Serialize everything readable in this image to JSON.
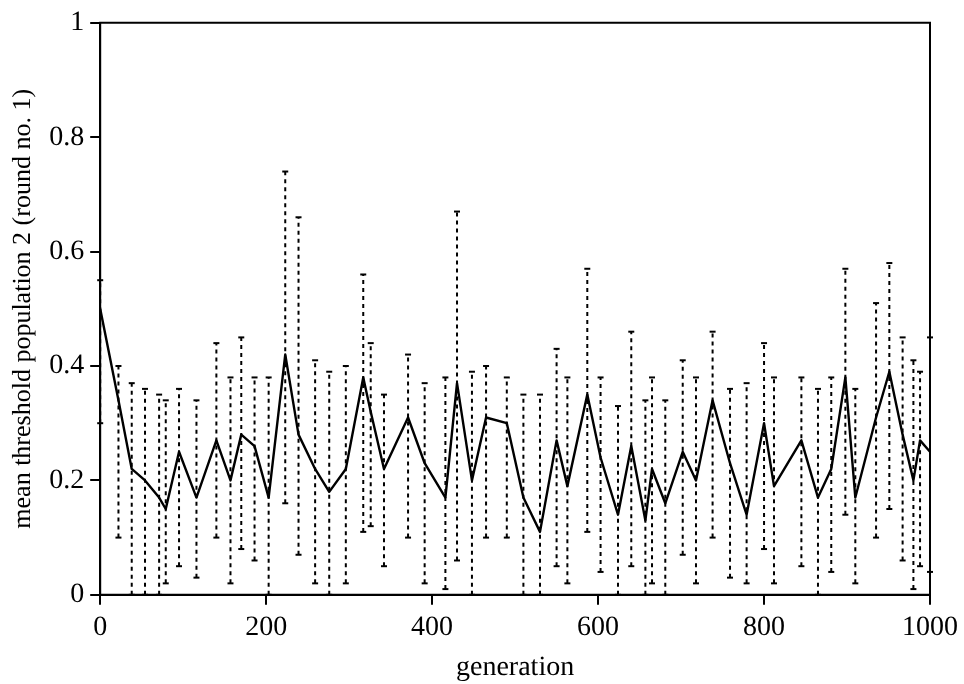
{
  "chart_data": {
    "type": "line",
    "xlabel": "generation",
    "ylabel": "mean threshold population 2 (round no. 1)",
    "xlim": [
      0,
      1000
    ],
    "xticks": [
      0,
      200,
      400,
      600,
      800,
      1000
    ],
    "ylim": [
      0,
      1
    ],
    "yticks": [
      0,
      0.2,
      0.4,
      0.6,
      0.8,
      1
    ],
    "grid": false,
    "legend": false,
    "marker": "none",
    "line_style": "solid",
    "series": [
      {
        "color": "#000000",
        "x": [
          0,
          22,
          38,
          54,
          71,
          79,
          95,
          116,
          140,
          157,
          170,
          186,
          203,
          223,
          239,
          259,
          276,
          296,
          317,
          326,
          342,
          371,
          391,
          416,
          430,
          448,
          465,
          490,
          510,
          530,
          550,
          563,
          587,
          603,
          624,
          640,
          657,
          665,
          681,
          702,
          718,
          738,
          759,
          779,
          800,
          812,
          845,
          865,
          881,
          898,
          910,
          935,
          951,
          967,
          980,
          988,
          1000
        ],
        "values": [
          0.5,
          0.34,
          0.22,
          0.2,
          0.17,
          0.15,
          0.25,
          0.17,
          0.27,
          0.2,
          0.28,
          0.26,
          0.17,
          0.42,
          0.28,
          0.22,
          0.18,
          0.22,
          0.38,
          0.32,
          0.22,
          0.31,
          0.23,
          0.17,
          0.37,
          0.2,
          0.31,
          0.3,
          0.17,
          0.11,
          0.27,
          0.19,
          0.35,
          0.24,
          0.14,
          0.26,
          0.13,
          0.22,
          0.16,
          0.25,
          0.2,
          0.34,
          0.23,
          0.14,
          0.3,
          0.19,
          0.27,
          0.17,
          0.22,
          0.38,
          0.17,
          0.31,
          0.39,
          0.28,
          0.2,
          0.27,
          0.25
        ],
        "errors": [
          [
            0.3,
            0.55
          ],
          [
            0.1,
            0.4
          ],
          [
            0.0,
            0.37
          ],
          [
            0.0,
            0.36
          ],
          [
            0.0,
            0.35
          ],
          [
            0.02,
            0.34
          ],
          [
            0.05,
            0.36
          ],
          [
            0.03,
            0.34
          ],
          [
            0.1,
            0.44
          ],
          [
            0.02,
            0.38
          ],
          [
            0.08,
            0.45
          ],
          [
            0.06,
            0.38
          ],
          [
            0.0,
            0.38
          ],
          [
            0.16,
            0.74
          ],
          [
            0.07,
            0.66
          ],
          [
            0.02,
            0.41
          ],
          [
            0.0,
            0.39
          ],
          [
            0.02,
            0.4
          ],
          [
            0.11,
            0.56
          ],
          [
            0.12,
            0.44
          ],
          [
            0.05,
            0.35
          ],
          [
            0.1,
            0.42
          ],
          [
            0.02,
            0.37
          ],
          [
            0.01,
            0.38
          ],
          [
            0.06,
            0.67
          ],
          [
            0.0,
            0.39
          ],
          [
            0.1,
            0.4
          ],
          [
            0.1,
            0.38
          ],
          [
            0.0,
            0.35
          ],
          [
            0.0,
            0.35
          ],
          [
            0.05,
            0.43
          ],
          [
            0.02,
            0.38
          ],
          [
            0.11,
            0.57
          ],
          [
            0.04,
            0.38
          ],
          [
            0.0,
            0.33
          ],
          [
            0.05,
            0.46
          ],
          [
            0.0,
            0.34
          ],
          [
            0.02,
            0.38
          ],
          [
            0.0,
            0.34
          ],
          [
            0.07,
            0.41
          ],
          [
            0.02,
            0.38
          ],
          [
            0.1,
            0.46
          ],
          [
            0.03,
            0.36
          ],
          [
            0.02,
            0.37
          ],
          [
            0.08,
            0.44
          ],
          [
            0.02,
            0.38
          ],
          [
            0.05,
            0.38
          ],
          [
            0.0,
            0.36
          ],
          [
            0.04,
            0.38
          ],
          [
            0.14,
            0.57
          ],
          [
            0.02,
            0.36
          ],
          [
            0.1,
            0.51
          ],
          [
            0.15,
            0.58
          ],
          [
            0.06,
            0.45
          ],
          [
            0.01,
            0.41
          ],
          [
            0.05,
            0.39
          ],
          [
            0.04,
            0.45
          ]
        ]
      }
    ]
  }
}
